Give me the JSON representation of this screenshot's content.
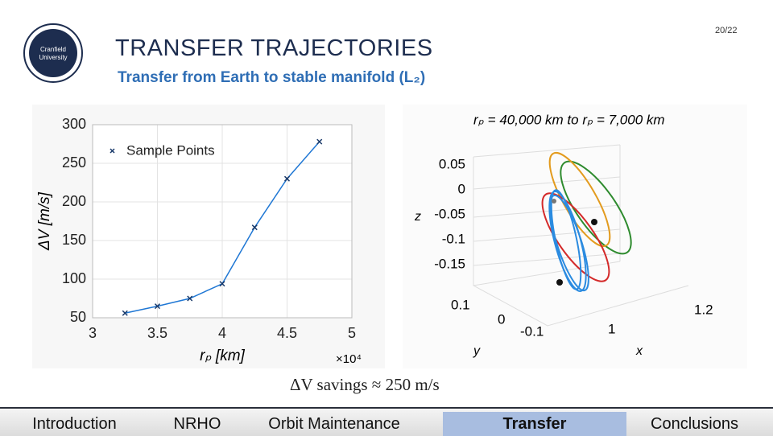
{
  "header": {
    "logo_text": [
      "Cranfield",
      "University"
    ],
    "title": "TRANSFER TRAJECTORIES",
    "subtitle": "Transfer from Earth to stable manifold (L₂)",
    "page_number": "20/22"
  },
  "chart_data": {
    "type": "line",
    "x": [
      3.25,
      3.5,
      3.75,
      4.0,
      4.25,
      4.5,
      4.75
    ],
    "series": [
      {
        "name": "Sample Points",
        "color": "#1f77d4",
        "values": [
          56,
          65,
          75,
          94,
          167,
          230,
          278
        ]
      }
    ],
    "xlim": [
      3,
      5
    ],
    "xticks": [
      3,
      {
        "value": 3.5,
        "label": "3.5"
      },
      4,
      {
        "value": 4.5,
        "label": "4.5"
      },
      5
    ],
    "ylim": [
      50,
      300
    ],
    "yticks": [
      50,
      100,
      150,
      200,
      250,
      300
    ],
    "x_label": "rₚ [km]",
    "x_scale_label": "×10⁴",
    "y_label": "ΔV [m/s]",
    "grid": true,
    "legend": "upper-left"
  },
  "orbit_plot": {
    "title": "rₚ = 40,000 km to rₚ = 7,000 km",
    "z_ticks": [
      "0.05",
      "0",
      "-0.05",
      "-0.1",
      "-0.15"
    ],
    "z_label": "z",
    "y_ticks": [
      "0.1",
      "0",
      "-0.1"
    ],
    "y_label": "y",
    "x_ticks": [
      "1",
      "1.2"
    ],
    "x_label": "x"
  },
  "caption": "ΔV savings ≈ 250 m/s",
  "nav": {
    "items": [
      "Introduction",
      "NRHO",
      "Orbit Maintenance",
      "Transfer",
      "Conclusions"
    ],
    "active": "Transfer"
  }
}
